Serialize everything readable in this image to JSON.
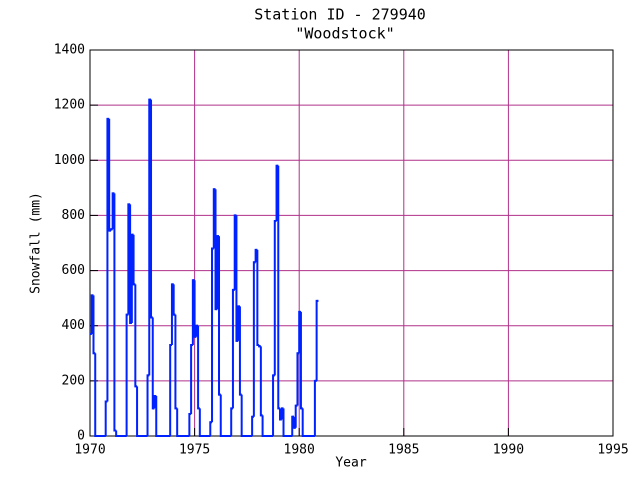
{
  "chart_data": {
    "type": "step",
    "title": "Station ID - 279940",
    "subtitle": "\"Woodstock\"",
    "x_label": "Year",
    "y_label": "Snowfall (mm)",
    "xlim": [
      1970,
      1995
    ],
    "xticks": [
      1970,
      1975,
      1980,
      1985,
      1990,
      1995
    ],
    "ylim": [
      0,
      1400
    ],
    "yticks": [
      0,
      200,
      400,
      600,
      800,
      1000,
      1200,
      1400
    ],
    "grid": true,
    "series": [
      {
        "name": "Snowfall",
        "color": "#0022ff",
        "x": [
          1970.0,
          1970.083,
          1970.167,
          1970.25,
          1970.333,
          1970.417,
          1970.5,
          1970.583,
          1970.667,
          1970.75,
          1970.833,
          1970.917,
          1971.0,
          1971.083,
          1971.167,
          1971.25,
          1971.333,
          1971.417,
          1971.5,
          1971.583,
          1971.667,
          1971.75,
          1971.833,
          1971.917,
          1972.0,
          1972.083,
          1972.167,
          1972.25,
          1972.333,
          1972.417,
          1972.5,
          1972.583,
          1972.667,
          1972.75,
          1972.833,
          1972.917,
          1973.0,
          1973.083,
          1973.167,
          1973.25,
          1973.333,
          1973.417,
          1973.5,
          1973.583,
          1973.667,
          1973.75,
          1973.833,
          1973.917,
          1974.0,
          1974.083,
          1974.167,
          1974.25,
          1974.333,
          1974.417,
          1974.5,
          1974.583,
          1974.667,
          1974.75,
          1974.833,
          1974.917,
          1975.0,
          1975.083,
          1975.167,
          1975.25,
          1975.333,
          1975.417,
          1975.5,
          1975.583,
          1975.667,
          1975.75,
          1975.833,
          1975.917,
          1976.0,
          1976.083,
          1976.167,
          1976.25,
          1976.333,
          1976.417,
          1976.5,
          1976.583,
          1976.667,
          1976.75,
          1976.833,
          1976.917,
          1977.0,
          1977.083,
          1977.167,
          1977.25,
          1977.333,
          1977.417,
          1977.5,
          1977.583,
          1977.667,
          1977.75,
          1977.833,
          1977.917,
          1978.0,
          1978.083,
          1978.167,
          1978.25,
          1978.333,
          1978.417,
          1978.5,
          1978.583,
          1978.667,
          1978.75,
          1978.833,
          1978.917,
          1979.0,
          1979.083,
          1979.167,
          1979.25,
          1979.333,
          1979.417,
          1979.5,
          1979.583,
          1979.667,
          1979.75,
          1979.833,
          1979.917,
          1980.0,
          1980.083,
          1980.167,
          1980.25,
          1980.333,
          1980.417,
          1980.5,
          1980.583,
          1980.667,
          1980.75,
          1980.833
        ],
        "values": [
          370,
          510,
          300,
          0,
          0,
          0,
          0,
          0,
          0,
          125,
          1150,
          745,
          750,
          880,
          20,
          0,
          0,
          0,
          0,
          0,
          0,
          440,
          840,
          410,
          730,
          550,
          180,
          0,
          0,
          0,
          0,
          0,
          0,
          220,
          1220,
          430,
          100,
          145,
          0,
          0,
          0,
          0,
          0,
          0,
          0,
          0,
          330,
          550,
          440,
          100,
          0,
          0,
          0,
          0,
          0,
          0,
          0,
          80,
          330,
          565,
          360,
          400,
          100,
          0,
          0,
          0,
          0,
          0,
          0,
          50,
          680,
          895,
          460,
          725,
          150,
          0,
          0,
          0,
          0,
          0,
          0,
          100,
          530,
          800,
          345,
          470,
          150,
          0,
          0,
          0,
          0,
          0,
          0,
          70,
          630,
          675,
          330,
          325,
          75,
          0,
          0,
          0,
          0,
          0,
          0,
          220,
          780,
          980,
          100,
          60,
          100,
          0,
          0,
          0,
          0,
          0,
          70,
          30,
          110,
          300,
          450,
          100,
          0,
          0,
          0,
          0,
          0,
          0,
          0,
          200,
          490
        ]
      }
    ]
  }
}
